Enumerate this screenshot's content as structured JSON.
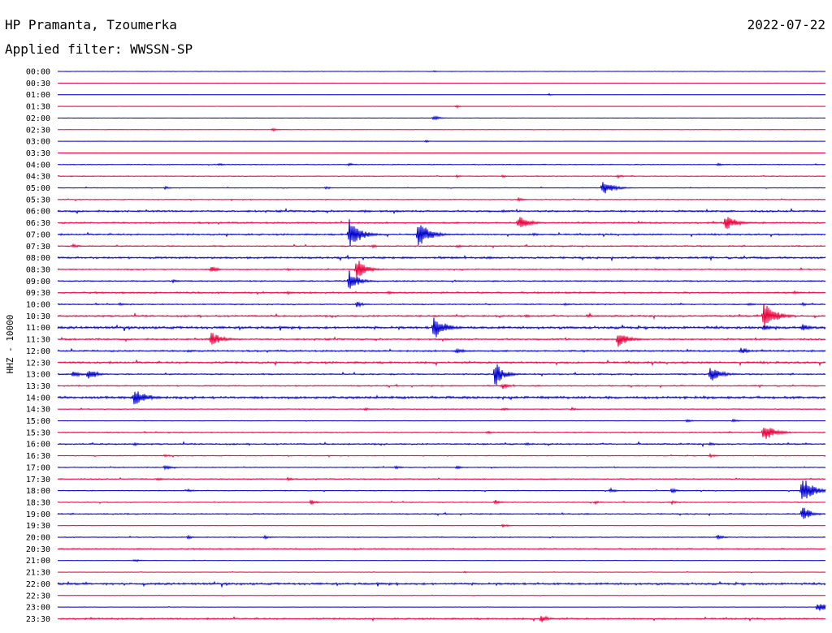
{
  "header": {
    "station": "HP Pramanta, Tzoumerka",
    "date": "2022-07-22",
    "filter": "Applied filter: WWSSN-SP"
  },
  "chart_data": {
    "type": "line",
    "title": "HP Pramanta, Tzoumerka",
    "date": "2022-07-22",
    "filter": "WWSSN-SP",
    "ylabel": "HHZ - 10000",
    "xlabel": "",
    "colors": {
      "blue": "#0000cc",
      "red": "#e8003c"
    },
    "rows": [
      {
        "time": "00:00",
        "color": "blue",
        "noise": 0.1,
        "events": [
          [
            0.49,
            1,
            0.4
          ]
        ]
      },
      {
        "time": "00:30",
        "color": "red",
        "noise": 0.05,
        "events": []
      },
      {
        "time": "01:00",
        "color": "blue",
        "noise": 0.1,
        "events": [
          [
            0.64,
            1.5,
            0.4
          ]
        ]
      },
      {
        "time": "01:30",
        "color": "red",
        "noise": 0.1,
        "events": [
          [
            0.52,
            2,
            0.4
          ]
        ]
      },
      {
        "time": "02:00",
        "color": "blue",
        "noise": 0.1,
        "events": [
          [
            0.49,
            3,
            0.8
          ]
        ]
      },
      {
        "time": "02:30",
        "color": "red",
        "noise": 0.1,
        "events": [
          [
            0.28,
            2,
            0.8
          ]
        ]
      },
      {
        "time": "03:00",
        "color": "blue",
        "noise": 0.1,
        "events": [
          [
            0.48,
            1.5,
            0.4
          ]
        ]
      },
      {
        "time": "03:30",
        "color": "red",
        "noise": 0.05,
        "events": [
          [
            0.43,
            1,
            0.3
          ]
        ]
      },
      {
        "time": "04:00",
        "color": "blue",
        "noise": 0.4,
        "events": [
          [
            0.21,
            2,
            0.6
          ],
          [
            0.38,
            2,
            0.6
          ],
          [
            0.86,
            2,
            0.8
          ]
        ]
      },
      {
        "time": "04:30",
        "color": "red",
        "noise": 0.4,
        "events": [
          [
            0.52,
            2,
            0.6
          ],
          [
            0.58,
            2,
            0.5
          ],
          [
            0.73,
            2,
            0.8
          ]
        ]
      },
      {
        "time": "05:00",
        "color": "blue",
        "noise": 0.3,
        "events": [
          [
            0.14,
            2,
            0.6
          ],
          [
            0.35,
            2,
            0.6
          ],
          [
            0.71,
            9,
            1.5
          ]
        ]
      },
      {
        "time": "05:30",
        "color": "red",
        "noise": 0.4,
        "events": [
          [
            0.6,
            2,
            0.8
          ]
        ]
      },
      {
        "time": "06:00",
        "color": "blue",
        "noise": 0.9,
        "events": [
          [
            0.4,
            2,
            0.8
          ],
          [
            0.58,
            1.5,
            0.8
          ]
        ]
      },
      {
        "time": "06:30",
        "color": "red",
        "noise": 0.8,
        "events": [
          [
            0.6,
            9,
            1.5
          ],
          [
            0.87,
            10,
            1.5
          ]
        ]
      },
      {
        "time": "07:00",
        "color": "blue",
        "noise": 0.8,
        "events": [
          [
            0.38,
            20,
            1.5
          ],
          [
            0.47,
            18,
            1.5
          ],
          [
            0.62,
            2,
            0.8
          ]
        ]
      },
      {
        "time": "07:30",
        "color": "red",
        "noise": 0.6,
        "events": [
          [
            0.02,
            3,
            0.8
          ],
          [
            0.41,
            2,
            0.8
          ],
          [
            0.52,
            2,
            0.8
          ]
        ]
      },
      {
        "time": "08:00",
        "color": "blue",
        "noise": 1.0,
        "events": [
          [
            0.78,
            2,
            0.8
          ]
        ]
      },
      {
        "time": "08:30",
        "color": "red",
        "noise": 0.6,
        "events": [
          [
            0.2,
            4,
            1
          ],
          [
            0.3,
            2,
            0.6
          ],
          [
            0.39,
            16,
            1.2
          ]
        ]
      },
      {
        "time": "09:00",
        "color": "blue",
        "noise": 0.6,
        "events": [
          [
            0.15,
            2,
            0.8
          ],
          [
            0.38,
            14,
            1.2
          ]
        ]
      },
      {
        "time": "09:30",
        "color": "red",
        "noise": 0.8,
        "events": [
          [
            0.3,
            2,
            0.8
          ],
          [
            0.43,
            2,
            0.8
          ],
          [
            0.96,
            2,
            0.8
          ]
        ]
      },
      {
        "time": "10:00",
        "color": "blue",
        "noise": 0.6,
        "events": [
          [
            0.08,
            2,
            1
          ],
          [
            0.39,
            4,
            0.8
          ],
          [
            0.66,
            2,
            0.8
          ],
          [
            0.9,
            2,
            0.8
          ],
          [
            0.97,
            2,
            0.8
          ]
        ]
      },
      {
        "time": "10:30",
        "color": "red",
        "noise": 0.8,
        "events": [
          [
            0.61,
            2,
            0.8
          ],
          [
            0.69,
            2,
            0.8
          ],
          [
            0.92,
            20,
            1.5
          ]
        ]
      },
      {
        "time": "11:00",
        "color": "blue",
        "noise": 1.2,
        "events": [
          [
            0.49,
            16,
            1.5
          ],
          [
            0.92,
            4,
            1
          ],
          [
            0.97,
            5,
            1
          ]
        ]
      },
      {
        "time": "11:30",
        "color": "red",
        "noise": 0.8,
        "events": [
          [
            0.2,
            10,
            1.5
          ],
          [
            0.73,
            10,
            1.5
          ]
        ]
      },
      {
        "time": "12:00",
        "color": "blue",
        "noise": 0.8,
        "events": [
          [
            0.17,
            2,
            0.8
          ],
          [
            0.52,
            4,
            1
          ],
          [
            0.89,
            5,
            1
          ]
        ]
      },
      {
        "time": "12:30",
        "color": "red",
        "noise": 1.0,
        "events": []
      },
      {
        "time": "13:00",
        "color": "blue",
        "noise": 0.7,
        "events": [
          [
            0.02,
            5,
            1
          ],
          [
            0.04,
            8,
            1.2
          ],
          [
            0.57,
            16,
            1.2
          ],
          [
            0.85,
            10,
            1.5
          ]
        ]
      },
      {
        "time": "13:30",
        "color": "red",
        "noise": 0.6,
        "events": [
          [
            0.58,
            4,
            0.8
          ]
        ]
      },
      {
        "time": "14:00",
        "color": "blue",
        "noise": 1.2,
        "events": [
          [
            0.1,
            10,
            2
          ]
        ]
      },
      {
        "time": "14:30",
        "color": "red",
        "noise": 0.4,
        "events": [
          [
            0.4,
            2,
            0.8
          ],
          [
            0.58,
            2,
            0.8
          ],
          [
            0.67,
            2,
            0.8
          ]
        ]
      },
      {
        "time": "15:00",
        "color": "blue",
        "noise": 0.3,
        "events": [
          [
            0.82,
            2,
            0.8
          ],
          [
            0.88,
            2,
            0.8
          ]
        ]
      },
      {
        "time": "15:30",
        "color": "red",
        "noise": 0.5,
        "events": [
          [
            0.56,
            2,
            0.8
          ],
          [
            0.92,
            12,
            1.5
          ]
        ]
      },
      {
        "time": "16:00",
        "color": "blue",
        "noise": 0.7,
        "events": [
          [
            0.1,
            2,
            0.8
          ],
          [
            0.61,
            2,
            0.8
          ],
          [
            0.85,
            2,
            0.8
          ]
        ]
      },
      {
        "time": "16:30",
        "color": "red",
        "noise": 0.4,
        "events": [
          [
            0.14,
            2,
            0.8
          ],
          [
            0.85,
            2,
            0.8
          ]
        ]
      },
      {
        "time": "17:00",
        "color": "blue",
        "noise": 0.4,
        "events": [
          [
            0.14,
            3,
            0.8
          ],
          [
            0.44,
            2,
            0.8
          ],
          [
            0.52,
            2,
            0.8
          ]
        ]
      },
      {
        "time": "17:30",
        "color": "red",
        "noise": 0.5,
        "events": [
          [
            0.13,
            2,
            0.8
          ],
          [
            0.3,
            2,
            0.8
          ]
        ]
      },
      {
        "time": "18:00",
        "color": "blue",
        "noise": 0.4,
        "events": [
          [
            0.17,
            2,
            0.8
          ],
          [
            0.72,
            3,
            0.8
          ],
          [
            0.8,
            3,
            0.8
          ],
          [
            0.97,
            18,
            1.5
          ]
        ]
      },
      {
        "time": "18:30",
        "color": "red",
        "noise": 0.4,
        "events": [
          [
            0.33,
            3,
            0.8
          ],
          [
            0.57,
            3,
            0.8
          ],
          [
            0.7,
            2,
            0.8
          ],
          [
            0.8,
            2,
            0.8
          ]
        ]
      },
      {
        "time": "19:00",
        "color": "blue",
        "noise": 0.6,
        "events": [
          [
            0.97,
            10,
            1.2
          ]
        ]
      },
      {
        "time": "19:30",
        "color": "red",
        "noise": 0.2,
        "events": [
          [
            0.58,
            2,
            0.8
          ]
        ]
      },
      {
        "time": "20:00",
        "color": "blue",
        "noise": 0.4,
        "events": [
          [
            0.17,
            2,
            0.8
          ],
          [
            0.27,
            2,
            0.8
          ],
          [
            0.86,
            3,
            0.8
          ]
        ]
      },
      {
        "time": "20:30",
        "color": "red",
        "noise": 0.6,
        "events": []
      },
      {
        "time": "21:00",
        "color": "blue",
        "noise": 0.2,
        "events": [
          [
            0.1,
            2,
            0.8
          ]
        ]
      },
      {
        "time": "21:30",
        "color": "red",
        "noise": 0.2,
        "events": [
          [
            0.53,
            1,
            0.5
          ]
        ]
      },
      {
        "time": "22:00",
        "color": "blue",
        "noise": 1.0,
        "events": []
      },
      {
        "time": "22:30",
        "color": "red",
        "noise": 0.2,
        "events": []
      },
      {
        "time": "23:00",
        "color": "blue",
        "noise": 0.2,
        "events": [
          [
            0.99,
            6,
            1.5
          ]
        ]
      },
      {
        "time": "23:30",
        "color": "red",
        "noise": 0.8,
        "events": [
          [
            0.63,
            5,
            1
          ]
        ]
      }
    ]
  }
}
